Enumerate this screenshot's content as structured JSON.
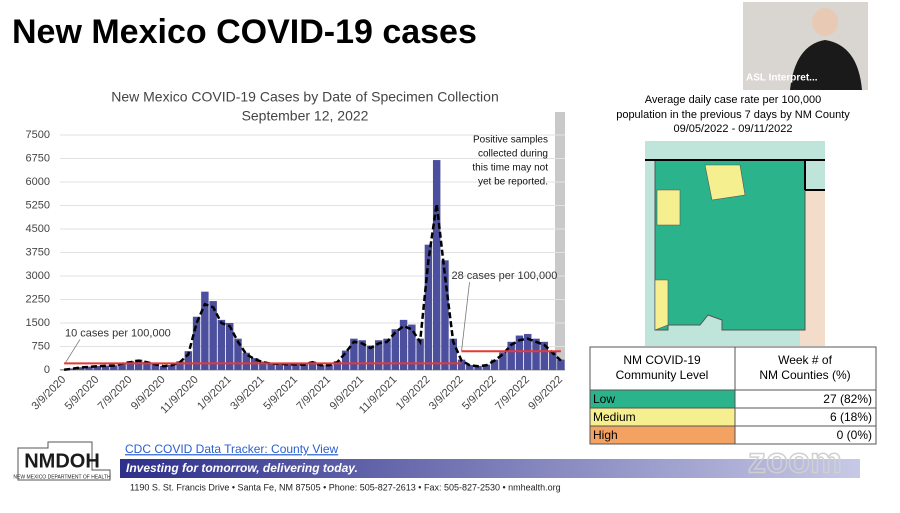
{
  "slide_title": "New Mexico COVID-19 cases",
  "chart_data": {
    "type": "bar",
    "title": "New Mexico COVID-19 Cases by Date of Specimen Collection",
    "subtitle": "September 12, 2022",
    "annotation": [
      "Positive samples",
      "collected during",
      "this time may not",
      "yet be reported."
    ],
    "categories": [
      "3/9/2020",
      null,
      null,
      null,
      "5/9/2020",
      null,
      null,
      null,
      "7/9/2020",
      null,
      null,
      null,
      "9/9/2020",
      null,
      null,
      null,
      "11/9/2020",
      null,
      null,
      null,
      "1/9/2021",
      null,
      null,
      null,
      "3/9/2021",
      null,
      null,
      null,
      "5/9/2021",
      null,
      null,
      null,
      "7/9/2021",
      null,
      null,
      null,
      "9/9/2021",
      null,
      null,
      null,
      "11/9/2021",
      null,
      null,
      null,
      "1/9/2022",
      null,
      null,
      null,
      "3/9/2022",
      null,
      null,
      null,
      "5/9/2022",
      null,
      null,
      null,
      "7/9/2022",
      null,
      null,
      null,
      "9/9/2022"
    ],
    "series": [
      {
        "type": "bar",
        "color": "#4c4f9e",
        "values": [
          20,
          50,
          90,
          110,
          130,
          140,
          150,
          220,
          280,
          330,
          260,
          190,
          130,
          160,
          280,
          600,
          1700,
          2500,
          2200,
          1600,
          1500,
          1000,
          550,
          380,
          270,
          220,
          210,
          190,
          190,
          180,
          270,
          160,
          160,
          280,
          620,
          1000,
          950,
          780,
          950,
          1000,
          1300,
          1600,
          1450,
          1000,
          4000,
          6700,
          3500,
          1000,
          330,
          160,
          130,
          170,
          330,
          560,
          900,
          1100,
          1150,
          1000,
          900,
          620,
          330
        ]
      },
      {
        "type": "line",
        "dashed": true,
        "color": "#000000",
        "values": [
          10,
          40,
          80,
          100,
          120,
          130,
          140,
          200,
          250,
          300,
          250,
          180,
          120,
          150,
          250,
          500,
          1500,
          2100,
          2000,
          1500,
          1400,
          900,
          500,
          350,
          250,
          200,
          200,
          180,
          180,
          170,
          250,
          150,
          150,
          250,
          550,
          900,
          850,
          700,
          850,
          900,
          1200,
          1400,
          1300,
          900,
          3500,
          5300,
          3000,
          900,
          300,
          150,
          120,
          150,
          300,
          500,
          800,
          950,
          1000,
          900,
          800,
          550,
          300
        ]
      },
      {
        "type": "line",
        "name": "10 cases per 100,000",
        "color": "#e53935",
        "values": [
          210,
          210,
          210,
          210,
          210,
          210,
          210,
          210,
          210,
          210,
          210,
          210,
          210,
          210,
          210,
          210,
          210,
          210,
          210,
          210,
          210,
          210,
          210,
          210,
          210,
          210,
          210,
          210,
          210,
          210,
          210,
          210,
          210,
          210,
          210,
          210,
          210,
          210,
          210,
          210,
          210,
          210,
          210,
          210,
          210,
          210,
          210,
          210,
          210,
          null,
          null,
          null,
          null,
          null,
          null,
          null,
          null,
          null,
          null,
          null,
          null
        ]
      },
      {
        "type": "line",
        "name": "28 cases per 100,000",
        "color": "#e53935",
        "values": [
          null,
          null,
          null,
          null,
          null,
          null,
          null,
          null,
          null,
          null,
          null,
          null,
          null,
          null,
          null,
          null,
          null,
          null,
          null,
          null,
          null,
          null,
          null,
          null,
          null,
          null,
          null,
          null,
          null,
          null,
          null,
          null,
          null,
          null,
          null,
          null,
          null,
          null,
          null,
          null,
          null,
          null,
          null,
          null,
          null,
          null,
          null,
          null,
          600,
          600,
          600,
          600,
          600,
          600,
          600,
          600,
          600,
          600,
          600,
          600,
          600
        ]
      }
    ],
    "ylim": [
      0,
      7500
    ],
    "yticks": [
      0,
      750,
      1500,
      2250,
      3000,
      3750,
      4500,
      5250,
      6000,
      6750,
      7500
    ],
    "grid": true
  },
  "map": {
    "title": [
      "Average daily case rate per 100,000",
      "population in the previous 7 days by NM County",
      "09/05/2022 - 09/11/2022"
    ]
  },
  "table": {
    "header": [
      "NM COVID-19 Community Level",
      "Week # of NM Counties (%)"
    ],
    "rows": [
      {
        "level": "Low",
        "count": "27 (82%)",
        "color": "#2bb38c"
      },
      {
        "level": "Medium",
        "count": "6 (18%)",
        "color": "#f6ef8f"
      },
      {
        "level": "High",
        "count": "0 (0%)",
        "color": "#f4a261"
      }
    ]
  },
  "footer": {
    "logo": "NMDOH",
    "logo_sub": "NEW MEXICO DEPARTMENT OF HEALTH",
    "link": "CDC COVID Data Tracker: County View",
    "tagline": "Investing for tomorrow, delivering today.",
    "address": "1190 S. St. Francis Drive • Santa Fe, NM 87505 • Phone: 505-827-2613 • Fax: 505-827-2530 • nmhealth.org"
  },
  "video": {
    "label": "ASL Interpret..."
  },
  "watermark": "zoom"
}
